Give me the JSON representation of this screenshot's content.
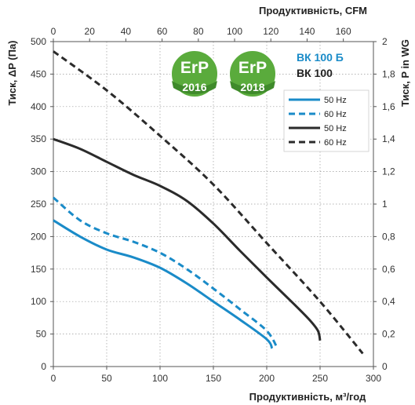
{
  "chart_data": {
    "type": "line",
    "xlabel_bottom": "Продуктивність, м³/год",
    "xlabel_top": "Продуктивність, CFM",
    "ylabel_left": "Тиск, ΔP (Па)",
    "ylabel_right": "Тиск,  P in WG",
    "xlim": [
      0,
      300
    ],
    "ylim": [
      0,
      500
    ],
    "x_ticks": [
      0,
      50,
      100,
      150,
      200,
      250,
      300
    ],
    "y_ticks": [
      0,
      50,
      100,
      150,
      200,
      250,
      300,
      350,
      400,
      450,
      500
    ],
    "top_ticks": [
      "0",
      "20",
      "40",
      "60",
      "80",
      "100",
      "120",
      "140",
      "160"
    ],
    "top_tick_values": [
      0,
      20,
      40,
      60,
      80,
      100,
      120,
      140,
      160
    ],
    "top_xlim": [
      0,
      176.6
    ],
    "right_ticks": [
      "0",
      "0,2",
      "0,4",
      "0,6",
      "0,8",
      "1",
      "1,2",
      "1,4",
      "1,6",
      "1,8",
      "2"
    ],
    "right_tick_values": [
      0,
      0.2,
      0.4,
      0.6,
      0.8,
      1,
      1.2,
      1.4,
      1.6,
      1.8,
      2
    ],
    "right_ylim": [
      0,
      2.0
    ],
    "grid": true,
    "series": [
      {
        "name": "50 Hz",
        "model": "ВК 100 Б",
        "color": "#1a8bc8",
        "dash": false,
        "x": [
          0,
          25,
          50,
          75,
          100,
          125,
          150,
          175,
          200,
          205
        ],
        "y": [
          225,
          200,
          180,
          168,
          152,
          128,
          100,
          72,
          42,
          28
        ]
      },
      {
        "name": "60 Hz",
        "model": "ВК 100 Б",
        "color": "#1a8bc8",
        "dash": true,
        "x": [
          0,
          25,
          50,
          75,
          100,
          125,
          150,
          175,
          200,
          210
        ],
        "y": [
          260,
          225,
          205,
          192,
          175,
          150,
          120,
          88,
          55,
          28
        ]
      },
      {
        "name": "50 Hz",
        "model": "ВК 100",
        "color": "#2b2b2b",
        "dash": false,
        "x": [
          0,
          25,
          50,
          75,
          100,
          125,
          150,
          175,
          200,
          225,
          240,
          248,
          250
        ],
        "y": [
          350,
          335,
          315,
          295,
          278,
          255,
          220,
          178,
          137,
          97,
          72,
          55,
          40
        ]
      },
      {
        "name": "60 Hz",
        "model": "ВК 100",
        "color": "#2b2b2b",
        "dash": true,
        "x": [
          0,
          50,
          100,
          150,
          200,
          250,
          290
        ],
        "y": [
          485,
          425,
          355,
          280,
          190,
          100,
          20
        ]
      }
    ],
    "legend": {
      "placement": "top-right",
      "models": [
        {
          "name": "ВК 100 Б",
          "color": "#1a8bc8"
        },
        {
          "name": "ВК 100",
          "color": "#222222"
        }
      ]
    },
    "badges": [
      {
        "text": "ErP",
        "year": "2016"
      },
      {
        "text": "ErP",
        "year": "2018"
      }
    ]
  }
}
